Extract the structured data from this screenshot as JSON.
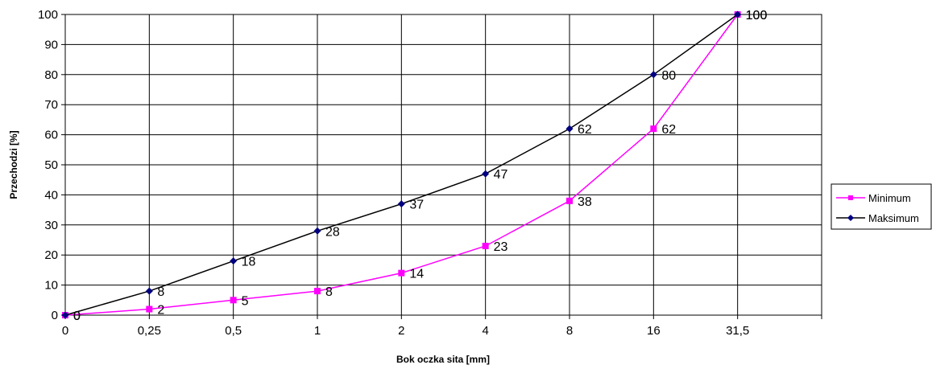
{
  "chart_data": {
    "type": "line",
    "categories": [
      "0",
      "0,25",
      "0,5",
      "1",
      "2",
      "4",
      "8",
      "16",
      "31,5"
    ],
    "series": [
      {
        "name": "Minimum",
        "color": "#ff00ff",
        "marker": "square",
        "values": [
          0,
          2,
          5,
          8,
          14,
          23,
          38,
          62,
          100
        ]
      },
      {
        "name": "Maksimum",
        "color": "#000080",
        "marker": "diamond",
        "values": [
          0,
          8,
          18,
          28,
          37,
          47,
          62,
          80,
          100
        ]
      }
    ],
    "data_labels": {
      "Minimum": [
        "0",
        "2",
        "5",
        "8",
        "14",
        "23",
        "38",
        "62",
        "100"
      ],
      "Maksimum": [
        "0",
        "8",
        "18",
        "28",
        "37",
        "47",
        "62",
        "80",
        "100"
      ]
    },
    "xlabel": "Bok oczka sita [mm]",
    "ylabel": "Przechodzi [%]",
    "yticks": [
      "0",
      "10",
      "20",
      "30",
      "40",
      "50",
      "60",
      "70",
      "80",
      "90",
      "100"
    ],
    "ylim": [
      0,
      100
    ],
    "grid": true,
    "legend_position": "right"
  }
}
